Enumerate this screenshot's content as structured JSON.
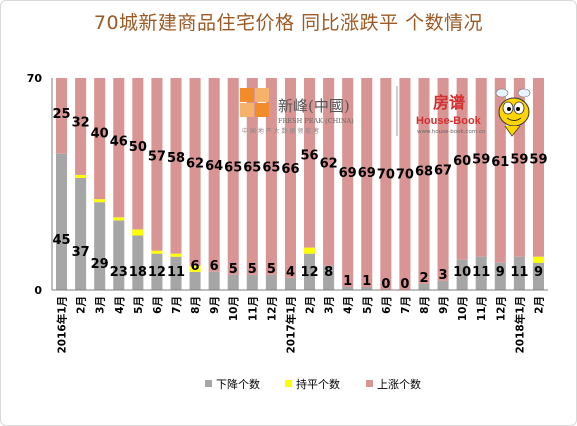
{
  "title": "70城新建商品住宅价格  同比涨跌平  个数情况",
  "logos": {
    "fresh_peak_cn": "新峰(中國)",
    "fresh_peak_en": "FRESH PEAK (CHINA)",
    "fresh_peak_sub": "中 国 地 产 大 数 据 领 航 者",
    "house_book_cn": "房谱",
    "house_book_en": "House-Book",
    "house_book_url": "www.house-book.com.cn"
  },
  "chart_data": {
    "type": "bar",
    "stacked": true,
    "ylim": [
      0,
      70
    ],
    "yticks": [
      "0",
      "70"
    ],
    "categories": [
      "2016年1月",
      "2月",
      "3月",
      "4月",
      "5月",
      "6月",
      "7月",
      "8月",
      "9月",
      "10月",
      "11月",
      "12月",
      "2017年1月",
      "2月",
      "3月",
      "4月",
      "5月",
      "6月",
      "7月",
      "8月",
      "9月",
      "10月",
      "11月",
      "12月",
      "2018年1月",
      "2月"
    ],
    "series": [
      {
        "name": "下降个数",
        "color": "#a6a6a6",
        "values": [
          45,
          37,
          29,
          23,
          18,
          12,
          11,
          6,
          6,
          5,
          5,
          5,
          4,
          12,
          8,
          1,
          1,
          0,
          0,
          2,
          3,
          10,
          11,
          9,
          11,
          9
        ]
      },
      {
        "name": "持平个数",
        "color": "#ffff00",
        "values": [
          0,
          1,
          1,
          1,
          2,
          1,
          1,
          2,
          0,
          0,
          0,
          0,
          0,
          2,
          0,
          0,
          0,
          0,
          0,
          0,
          0,
          0,
          0,
          0,
          0,
          2
        ]
      },
      {
        "name": "上涨个数",
        "color": "#d99594",
        "values": [
          25,
          32,
          40,
          46,
          50,
          57,
          58,
          62,
          64,
          65,
          65,
          65,
          66,
          56,
          62,
          69,
          69,
          70,
          70,
          68,
          67,
          60,
          59,
          61,
          59,
          59
        ]
      }
    ],
    "label_series": [
      "下降个数",
      "上涨个数"
    ],
    "legend_position": "bottom",
    "grid": false
  },
  "colors": {
    "title": "#9c5a24",
    "axis": "#7f7f7f",
    "label": "#000000",
    "fresh_orange": "#f08c2a",
    "house_red": "#d42e2e"
  }
}
